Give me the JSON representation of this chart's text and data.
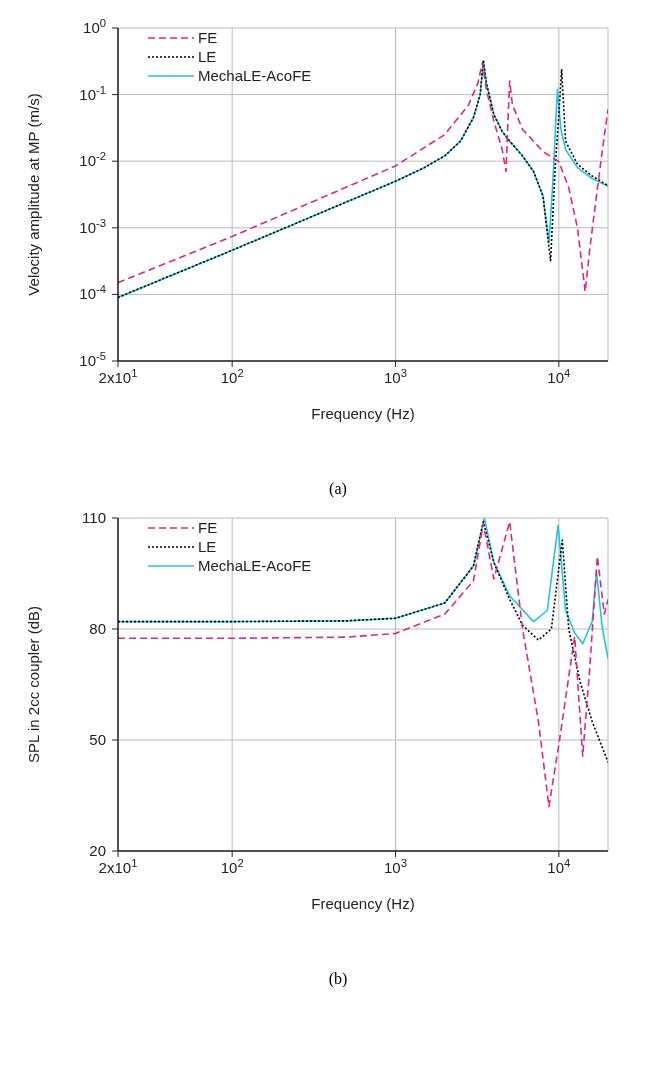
{
  "chart_data": [
    {
      "type": "line",
      "xlabel": "Frequency (Hz)",
      "ylabel": "Velocity amplitude at MP (m/s)",
      "log": "xy",
      "grid": true,
      "legend": "top left",
      "marker": "none",
      "xlim": [
        20,
        20000
      ],
      "xticks": [
        {
          "value": 20,
          "label": "2x10$^{1}$"
        },
        {
          "value": 100,
          "label": "10$^{2}$"
        },
        {
          "value": 1000,
          "label": "10$^{3}$"
        },
        {
          "value": 10000,
          "label": "10$^{4}$"
        }
      ],
      "ylim": [
        1e-05,
        1
      ],
      "yticks": [
        {
          "value": 1e-05,
          "label": "10$^{-5}$"
        },
        {
          "value": 0.0001,
          "label": "10$^{-4}$"
        },
        {
          "value": 0.001,
          "label": "10$^{-3}$"
        },
        {
          "value": 0.01,
          "label": "10$^{-2}$"
        },
        {
          "value": 0.1,
          "label": "10$^{-1}$"
        },
        {
          "value": 1,
          "label": "10$^{0}$"
        }
      ],
      "series": [
        {
          "name": "FE",
          "color": "#e0287a",
          "line_style": "dashed",
          "x": [
            20,
            100,
            1000,
            2000,
            2800,
            3200,
            3400,
            3600,
            4000,
            4500,
            4750,
            4900,
            5000,
            5200,
            6000,
            8000,
            10000,
            11500,
            13000,
            14500,
            15500,
            17000,
            18500,
            20000
          ],
          "values": [
            0.00015,
            0.00074,
            0.0085,
            0.025,
            0.07,
            0.15,
            0.3,
            0.12,
            0.04,
            0.015,
            0.007,
            0.05,
            0.16,
            0.07,
            0.03,
            0.014,
            0.0098,
            0.004,
            0.001,
            0.00011,
            0.0005,
            0.003,
            0.015,
            0.06
          ]
        },
        {
          "name": "LE",
          "color": "#000000",
          "line_style": "dotted",
          "x": [
            20,
            100,
            1000,
            1500,
            2000,
            2500,
            3000,
            3300,
            3450,
            3600,
            4000,
            4500,
            5000,
            6000,
            7000,
            8000,
            8900,
            9500,
            10000,
            10400,
            11000,
            13000,
            16000,
            20000
          ],
          "values": [
            9e-05,
            0.00046,
            0.005,
            0.008,
            0.012,
            0.02,
            0.045,
            0.1,
            0.33,
            0.15,
            0.05,
            0.028,
            0.02,
            0.012,
            0.007,
            0.003,
            0.00032,
            0.008,
            0.05,
            0.24,
            0.02,
            0.009,
            0.006,
            0.0043
          ]
        },
        {
          "name": "MechaLE-AcoFE",
          "color": "#22c5e0",
          "line_style": "solid",
          "x": [
            20,
            100,
            1000,
            1500,
            2000,
            2500,
            3000,
            3300,
            3450,
            3600,
            4000,
            4500,
            5000,
            6000,
            7000,
            8000,
            8700,
            9200,
            9800,
            10300,
            11000,
            13000,
            16000,
            20000
          ],
          "values": [
            9e-05,
            0.00046,
            0.005,
            0.008,
            0.012,
            0.02,
            0.045,
            0.1,
            0.32,
            0.15,
            0.05,
            0.028,
            0.02,
            0.012,
            0.007,
            0.003,
            0.0006,
            0.005,
            0.12,
            0.03,
            0.015,
            0.008,
            0.0055,
            0.0042
          ]
        }
      ],
      "annotations": [
        "(a)"
      ]
    },
    {
      "type": "line",
      "xlabel": "Frequency (Hz)",
      "ylabel": "SPL in 2cc coupler (dB)",
      "log": "x",
      "grid": true,
      "legend": "top left",
      "marker": "none",
      "xlim": [
        20,
        20000
      ],
      "xticks": [
        {
          "value": 20,
          "label": "2x10$^{1}$"
        },
        {
          "value": 100,
          "label": "10$^{2}$"
        },
        {
          "value": 1000,
          "label": "10$^{3}$"
        },
        {
          "value": 10000,
          "label": "10$^{4}$"
        }
      ],
      "ylim": [
        20,
        110
      ],
      "yticks": [
        20,
        50,
        80,
        110
      ],
      "series": [
        {
          "name": "FE",
          "color": "#e0287a",
          "line_style": "dashed",
          "x": [
            20,
            100,
            500,
            1000,
            2000,
            3000,
            3450,
            4000,
            5000,
            6000,
            7500,
            8700,
            10100,
            12500,
            14000,
            15500,
            17200,
            19000,
            20000
          ],
          "values": [
            77.5,
            77.5,
            77.8,
            78.8,
            84,
            93,
            108.5,
            93.5,
            109,
            80,
            55,
            32,
            50,
            78,
            45.6,
            70,
            99.6,
            84,
            88
          ]
        },
        {
          "name": "LE",
          "color": "#000000",
          "line_style": "dotted",
          "x": [
            20,
            100,
            500,
            1000,
            2000,
            3000,
            3450,
            4000,
            5000,
            6000,
            7500,
            9000,
            10500,
            11500,
            13500,
            16000,
            20000
          ],
          "values": [
            82,
            82,
            82.2,
            82.9,
            87,
            97,
            109,
            98,
            88,
            81,
            77,
            80,
            104,
            80,
            65.7,
            55,
            44
          ]
        },
        {
          "name": "MechaLE-AcoFE",
          "color": "#22c5e0",
          "line_style": "solid",
          "x": [
            20,
            100,
            500,
            1000,
            2000,
            3000,
            3500,
            4000,
            5000,
            7000,
            8500,
            9900,
            11000,
            12500,
            14000,
            16000,
            17000,
            18500,
            20000
          ],
          "values": [
            82,
            82,
            82.2,
            82.9,
            87,
            97,
            110,
            98,
            89,
            82,
            85,
            108,
            85,
            79,
            76,
            82,
            95.5,
            80,
            72
          ]
        }
      ],
      "annotations": [
        "(b)"
      ]
    }
  ]
}
